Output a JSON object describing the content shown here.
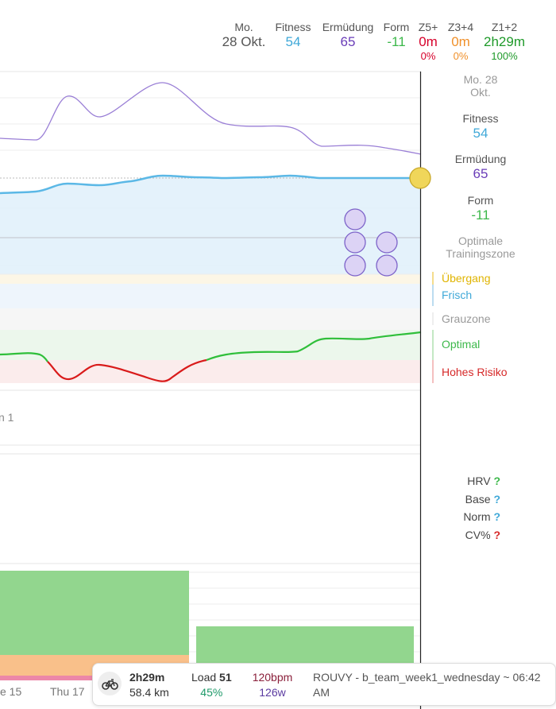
{
  "header": {
    "date_label": "Mo.",
    "date_value": "28 Okt.",
    "fitness_label": "Fitness",
    "fitness_value": "54",
    "fatigue_label": "Ermüdung",
    "fatigue_value": "65",
    "form_label": "Form",
    "form_value": "-11",
    "z5_label": "Z5+",
    "z5_value": "0m",
    "z5_pct": "0%",
    "z34_label": "Z3+4",
    "z34_value": "0m",
    "z34_pct": "0%",
    "z12_label": "Z1+2",
    "z12_value": "2h29m",
    "z12_pct": "100%"
  },
  "side": {
    "date_line1": "Mo. 28",
    "date_line2": "Okt.",
    "fitness_label": "Fitness",
    "fitness_value": "54",
    "fatigue_label": "Ermüdung",
    "fatigue_value": "65",
    "form_label": "Form",
    "form_value": "-11",
    "optimal_line1": "Optimale",
    "optimal_line2": "Trainingszone"
  },
  "zones": [
    {
      "label": "Übergang",
      "color": "#e0b400"
    },
    {
      "label": "Frisch",
      "color": "#3fa8d8"
    },
    {
      "label": "Grauzone",
      "color": "#999999"
    },
    {
      "label": "Optimal",
      "color": "#3cb84a"
    },
    {
      "label": "Hohes Risiko",
      "color": "#d62828"
    }
  ],
  "left_cut_text": "n 1",
  "hrv": {
    "hrv_label": "HRV",
    "base_label": "Base",
    "norm_label": "Norm",
    "cv_label": "CV%",
    "q": "?"
  },
  "axis": {
    "tick1": "e 15",
    "tick2": "Thu 17"
  },
  "tooltip": {
    "duration": "2h29m",
    "distance": "58.4 km",
    "load_label": "Load",
    "load_value": "51",
    "load_pct": "45%",
    "hr": "120bpm",
    "power": "126w",
    "title_line1": "ROUVY - b_team_week1_wednesday ~ 06:42",
    "title_line2": "AM"
  },
  "colors": {
    "fitness": "#3fa8d8",
    "fatigue": "#6a3db8",
    "form": "#3cb84a",
    "z5": "#d6002a",
    "z34": "#f0902a",
    "z12": "#1f9a2a",
    "cursor_dot": "#e8c93a"
  },
  "chart_data": {
    "type": "line",
    "series": [
      {
        "name": "Fitness",
        "values": [
          46,
          47,
          51,
          50,
          52,
          53,
          53,
          53,
          53,
          53,
          54,
          54,
          54
        ]
      },
      {
        "name": "Ermüdung",
        "values": [
          69,
          69,
          96,
          85,
          95,
          101,
          88,
          86,
          85,
          72,
          70,
          68,
          65
        ]
      },
      {
        "name": "Form",
        "values": [
          -5,
          -5,
          -6,
          -19,
          -12,
          -16,
          -26,
          -8,
          -6,
          -3,
          -4,
          -4,
          -11
        ]
      }
    ]
  }
}
